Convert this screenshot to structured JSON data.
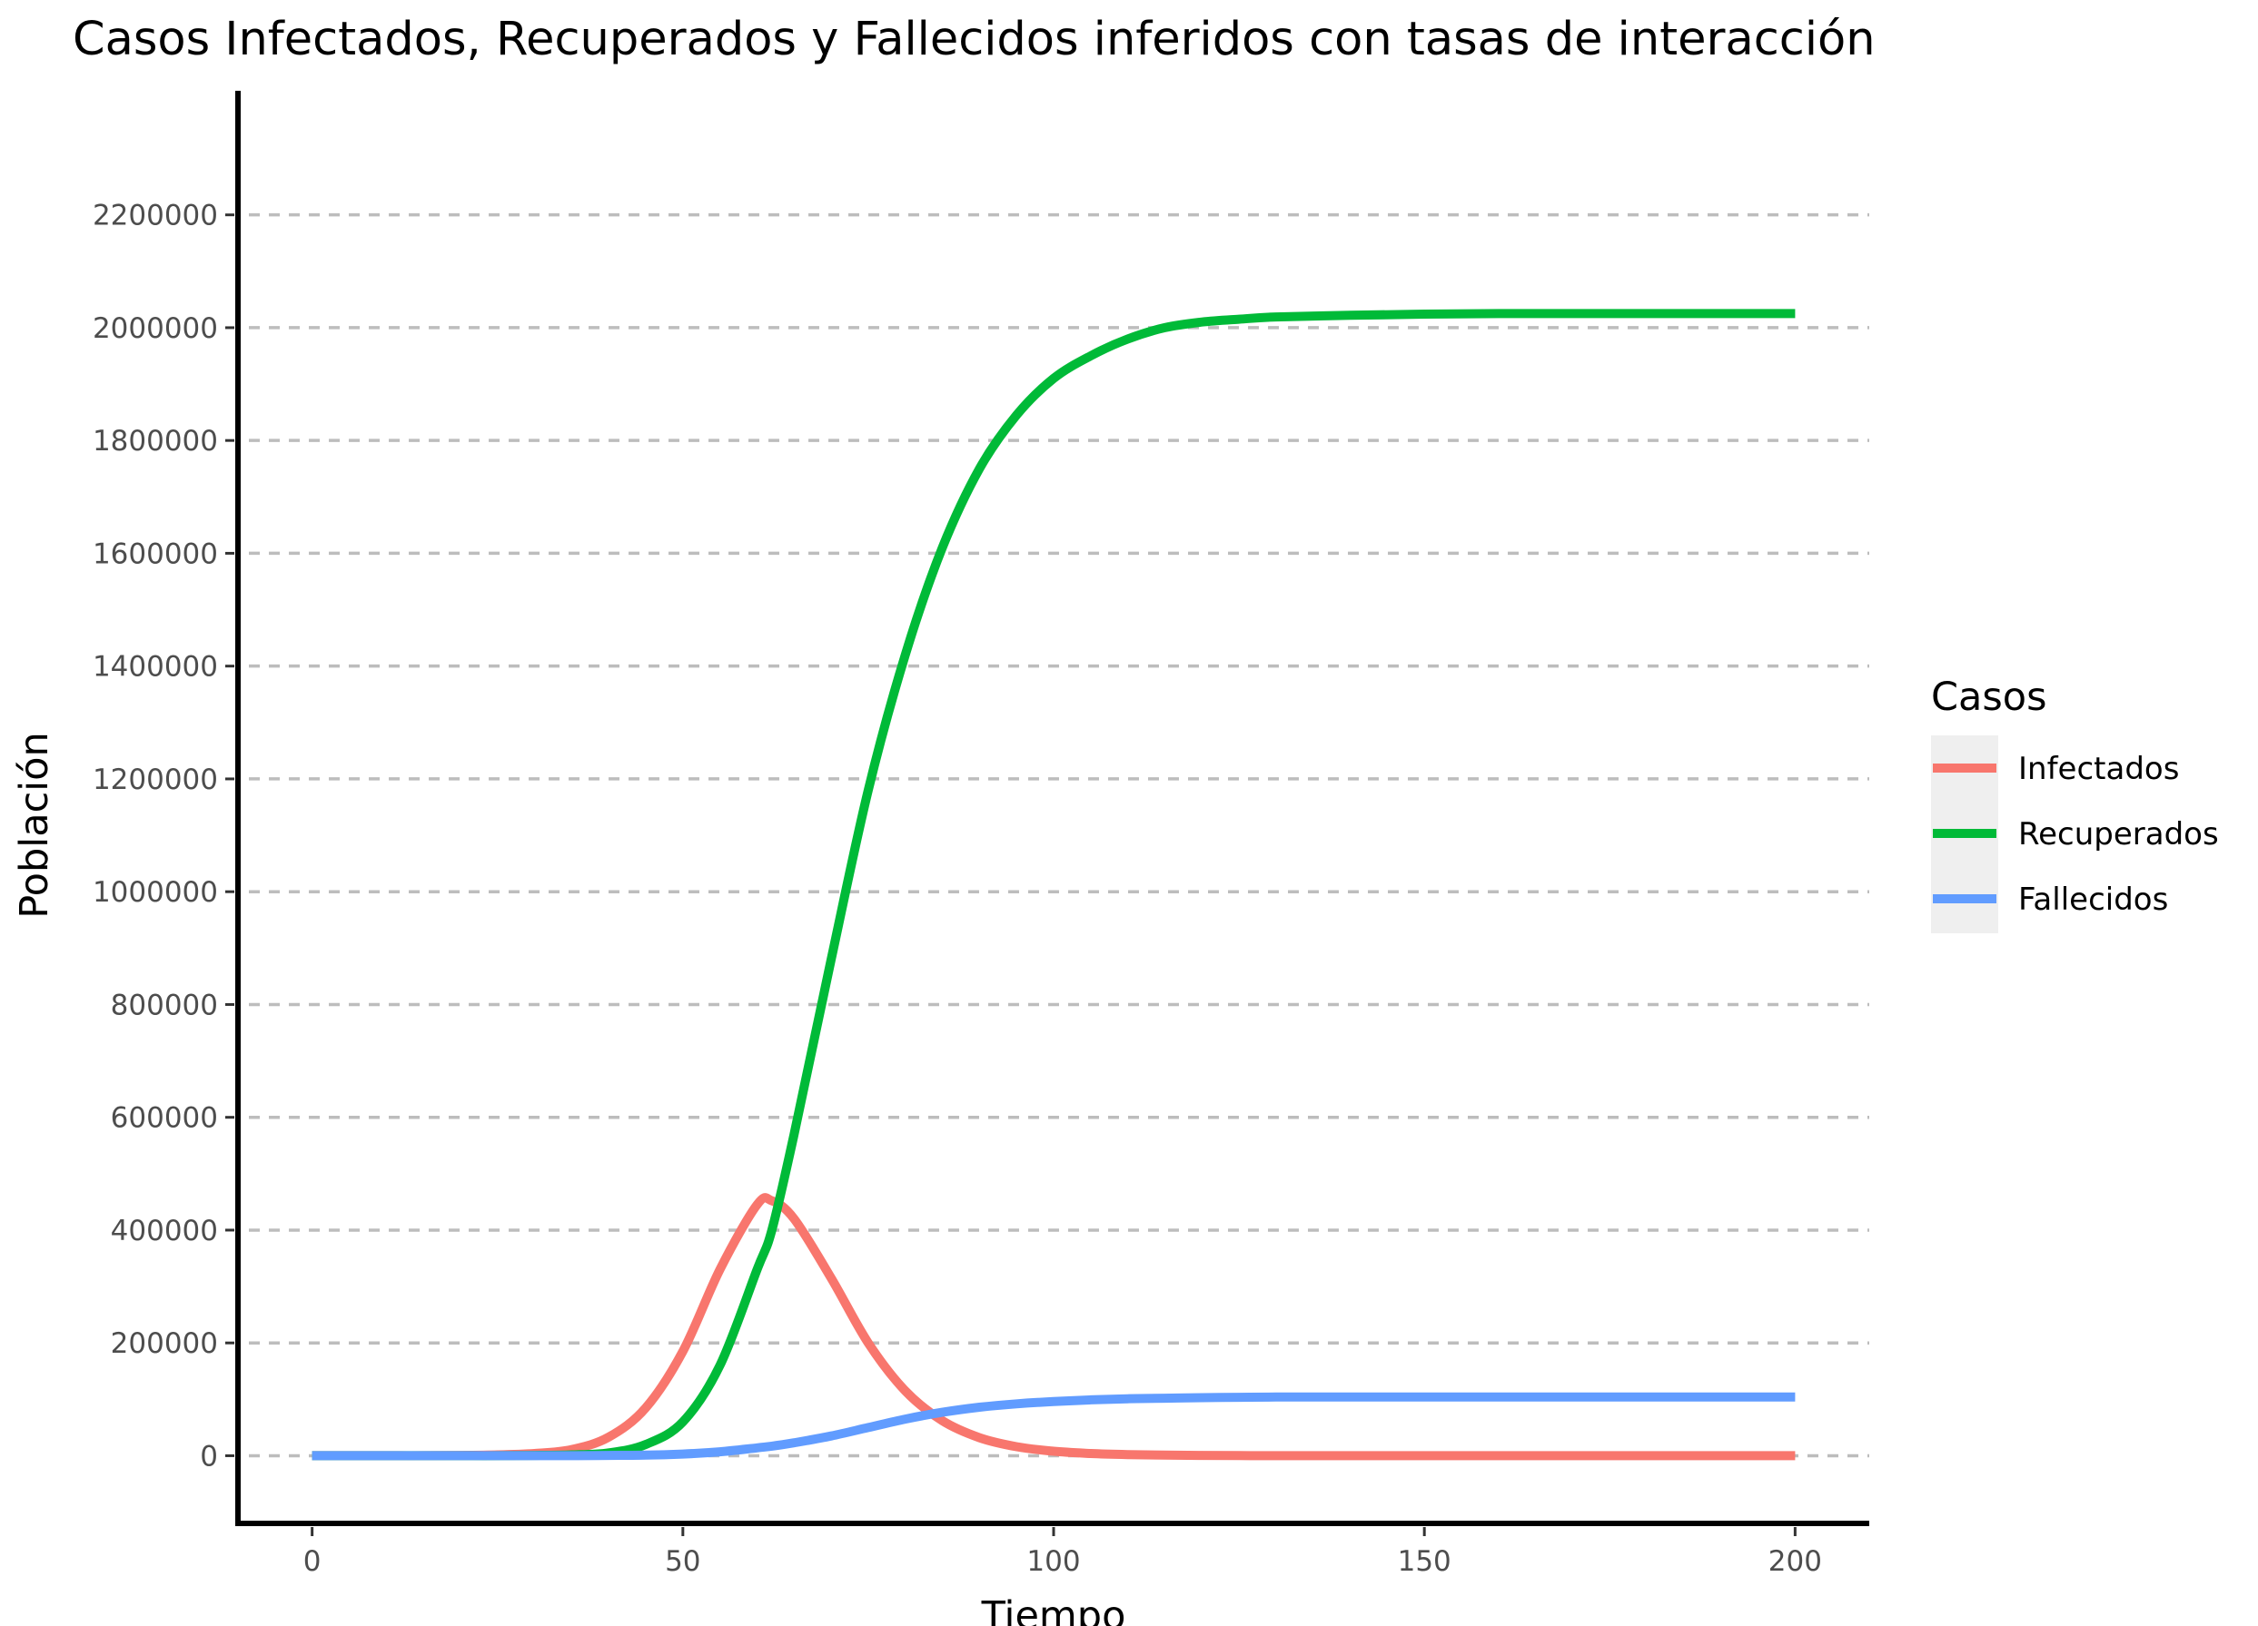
{
  "chart_data": {
    "type": "line",
    "title": "Casos Infectados, Recuperados y Fallecidos inferidos con tasas de interacción",
    "xlabel": "Tiempo",
    "ylabel": "Población",
    "xlim": [
      -10,
      210
    ],
    "ylim": [
      -120000,
      2420000
    ],
    "x_ticks": [
      0,
      50,
      100,
      150,
      200
    ],
    "x_tick_labels": [
      "0",
      "50",
      "100",
      "150",
      "200"
    ],
    "y_ticks": [
      0,
      200000,
      400000,
      600000,
      800000,
      1000000,
      1200000,
      1400000,
      1600000,
      1800000,
      2000000,
      2200000
    ],
    "y_tick_labels": [
      "0",
      "200000",
      "400000",
      "600000",
      "800000",
      "1000000",
      "1200000",
      "1400000",
      "1600000",
      "1800000",
      "2000000",
      "2200000"
    ],
    "grid": "horizontal dashed",
    "legend": {
      "title": "Casos",
      "placement": "right"
    },
    "x": [
      0,
      5,
      10,
      15,
      20,
      25,
      30,
      35,
      40,
      45,
      50,
      55,
      60,
      62,
      65,
      70,
      75,
      80,
      85,
      90,
      95,
      100,
      105,
      110,
      115,
      120,
      125,
      130,
      140,
      150,
      160,
      170,
      180,
      190,
      200
    ],
    "series": [
      {
        "name": "Infectados",
        "color": "#F8766D",
        "values": [
          0,
          0,
          0,
          0,
          500,
          1500,
          4000,
          11000,
          33000,
          85000,
          185000,
          330000,
          445000,
          452000,
          420000,
          315000,
          200000,
          115000,
          62000,
          32000,
          16000,
          8000,
          4000,
          2000,
          1000,
          500,
          200,
          100,
          0,
          0,
          0,
          0,
          0,
          0,
          0
        ]
      },
      {
        "name": "Recuperados",
        "color": "#00BA38",
        "values": [
          0,
          0,
          0,
          0,
          0,
          0,
          500,
          1500,
          5000,
          20000,
          60000,
          160000,
          330000,
          400000,
          570000,
          880000,
          1180000,
          1420000,
          1610000,
          1750000,
          1845000,
          1910000,
          1950000,
          1980000,
          2000000,
          2010000,
          2015000,
          2019000,
          2022000,
          2024000,
          2025000,
          2025000,
          2025000,
          2025000,
          2025000
        ]
      },
      {
        "name": "Fallecidos",
        "color": "#619CFF",
        "values": [
          0,
          0,
          0,
          0,
          0,
          0,
          0,
          0,
          500,
          1000,
          3000,
          7000,
          14000,
          17000,
          23000,
          35000,
          50000,
          65000,
          77000,
          86000,
          92000,
          96000,
          99000,
          101000,
          102000,
          103000,
          103500,
          104000,
          104000,
          104000,
          104000,
          104000,
          104000,
          104000,
          104000
        ]
      }
    ]
  }
}
